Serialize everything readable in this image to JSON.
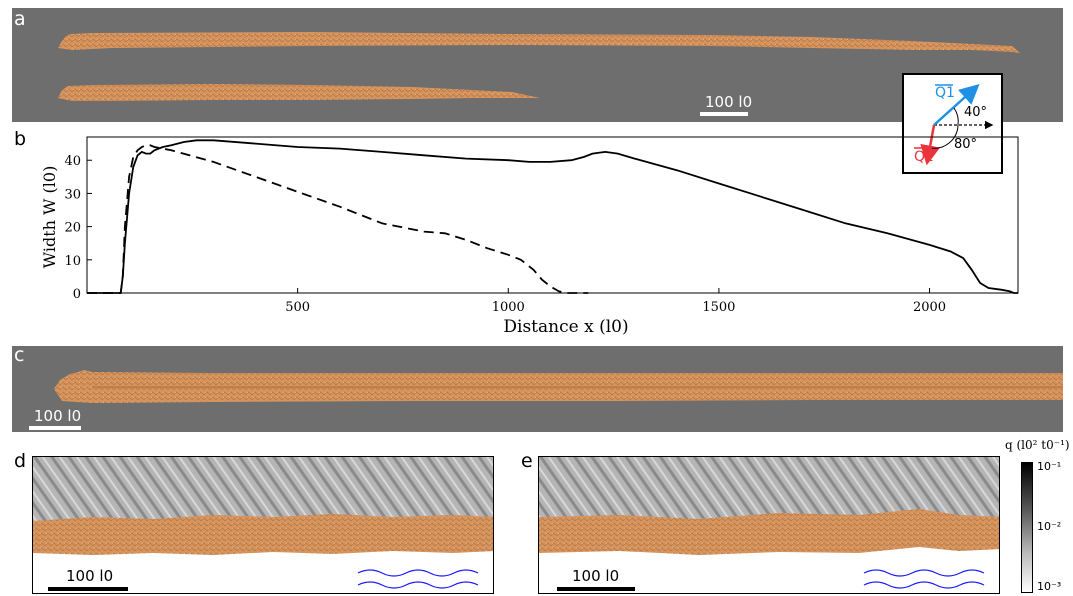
{
  "panel_labels": {
    "a": "a",
    "b": "b",
    "c": "c",
    "d": "d",
    "e": "e"
  },
  "scalebars": {
    "a": "100 l0",
    "c": "100 l0",
    "d": "100 l0",
    "e": "100 l0"
  },
  "inset": {
    "q1_label": "Q1",
    "q2_label": "Q2",
    "angle1": "40°",
    "angle2": "80°",
    "q1_color": "#1e90e6",
    "q2_color": "#e8343a"
  },
  "colorbar": {
    "title": "q (l0² t0⁻¹)",
    "tick_top": "10⁻¹",
    "tick_mid": "10⁻²",
    "tick_bottom": "10⁻³"
  },
  "chart_data": {
    "type": "line",
    "xlabel": "Distance x (l0)",
    "ylabel": "Width W (l0)",
    "xlim": [
      0,
      2210
    ],
    "ylim": [
      0,
      47
    ],
    "xticks": [
      500,
      1000,
      1500,
      2000
    ],
    "yticks": [
      0,
      10,
      20,
      30,
      40
    ],
    "grid": false,
    "series": [
      {
        "style": "solid",
        "x": [
          0,
          80,
          85,
          90,
          100,
          110,
          120,
          130,
          140,
          150,
          160,
          180,
          200,
          230,
          260,
          300,
          400,
          500,
          600,
          700,
          800,
          900,
          1000,
          1050,
          1100,
          1150,
          1180,
          1200,
          1230,
          1260,
          1300,
          1400,
          1500,
          1600,
          1700,
          1800,
          1900,
          2000,
          2050,
          2080,
          2100,
          2120,
          2140,
          2170,
          2190,
          2200,
          2210
        ],
        "y": [
          0,
          0,
          5,
          15,
          30,
          38,
          41.5,
          42.5,
          42,
          42,
          43,
          44,
          44.5,
          45.5,
          46,
          46,
          45,
          44,
          43.5,
          42.5,
          41.5,
          40.5,
          40,
          39.5,
          39.5,
          40,
          41,
          42,
          42.5,
          42,
          40.5,
          37,
          33,
          29,
          25,
          21,
          18,
          14.5,
          12.5,
          10.5,
          7,
          3,
          1.5,
          1,
          0.5,
          0,
          0
        ]
      },
      {
        "style": "dashed",
        "x": [
          0,
          80,
          85,
          90,
          100,
          110,
          120,
          130,
          140,
          150,
          160,
          180,
          200,
          300,
          400,
          500,
          600,
          700,
          800,
          850,
          900,
          950,
          1000,
          1030,
          1060,
          1080,
          1100,
          1120,
          1140,
          1160,
          1190
        ],
        "y": [
          0,
          0,
          5,
          20,
          35,
          41,
          43,
          44,
          44.5,
          44.5,
          44,
          43.5,
          43,
          39.5,
          35,
          30.5,
          26,
          21,
          18.5,
          18,
          16,
          13.5,
          11.5,
          10,
          7,
          4,
          2,
          0.5,
          0,
          0,
          0
        ]
      }
    ]
  }
}
